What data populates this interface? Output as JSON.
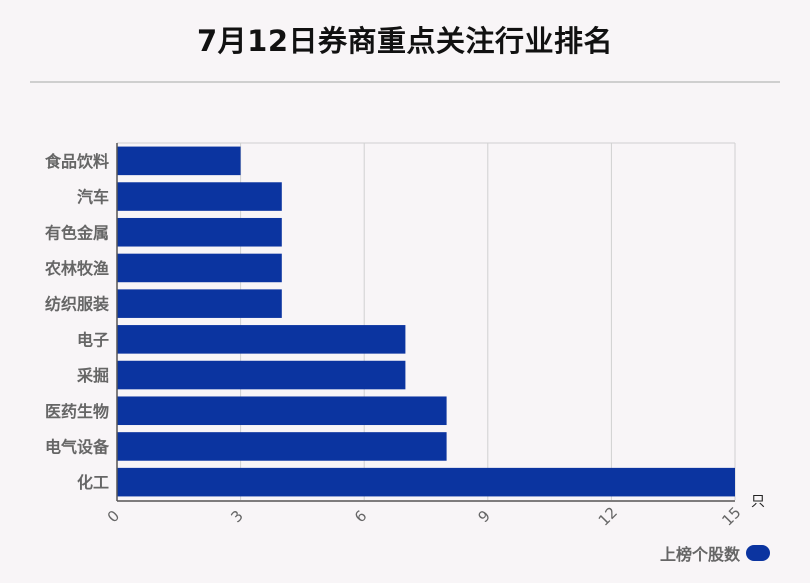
{
  "title": "7月12日券商重点关注行业排名",
  "chart_data": {
    "type": "bar",
    "orientation": "horizontal",
    "categories": [
      "食品饮料",
      "汽车",
      "有色金属",
      "农林牧渔",
      "纺织服装",
      "电子",
      "采掘",
      "医药生物",
      "电气设备",
      "化工"
    ],
    "series": [
      {
        "name": "上榜个股数",
        "values": [
          3,
          4,
          4,
          4,
          4,
          7,
          7,
          8,
          8,
          15
        ]
      }
    ],
    "xlim": [
      0,
      15
    ],
    "xticks": [
      0,
      3,
      6,
      9,
      12,
      15
    ],
    "xunit": "只",
    "grid": true,
    "legend": "bottom-right",
    "bar_color": "#0b34a0"
  }
}
